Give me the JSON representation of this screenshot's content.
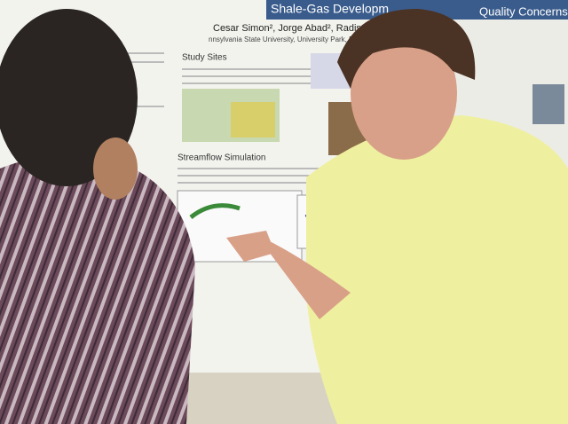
{
  "poster": {
    "title_fragment": "Shale-Gas Developm",
    "title_right": "Quality Concerns",
    "authors": "Cesar Simon², Jorge Abad², Radisav",
    "affiliation": "nnsylvania State University, University Park, PA, ²Department of C",
    "sections": [
      "Study Sites",
      "Streamflow Simulation"
    ]
  }
}
